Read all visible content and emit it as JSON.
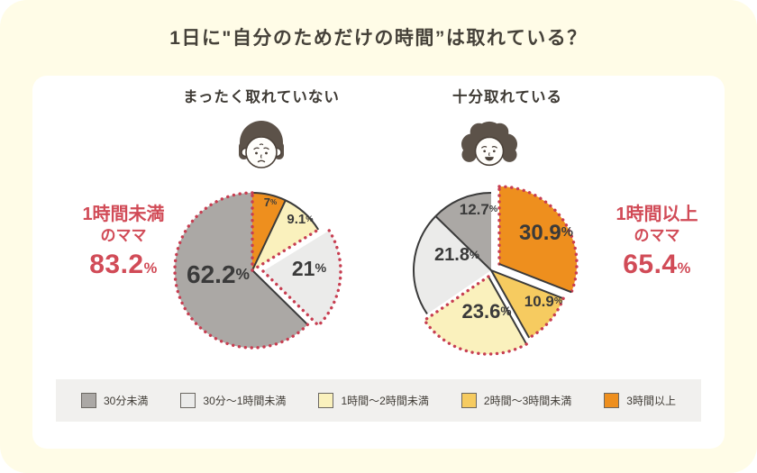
{
  "page": {
    "title": "1日に\"自分のためだけの時間”は取れている？"
  },
  "colors": {
    "gray": "#ABA8A5",
    "lightgray": "#EBEBEA",
    "paleyellow": "#FAF1BD",
    "yellow": "#F6CB60",
    "orange": "#EE8F1E",
    "dark": "#3A3A3A",
    "red_dots": "#C73E51",
    "red_text": "#D14B57",
    "background_cream": "#FFFCE7",
    "card_white": "#FFFFFF",
    "legend_strip": "#F1F0EE"
  },
  "chart_data": [
    {
      "type": "pie",
      "title": "まったく取れていない",
      "face": "worried",
      "callout": {
        "line1": "1時間未満",
        "line2": "のママ",
        "value": "83.2%"
      },
      "highlight_note": "30分未満 + 30分～1時間未満 = 83.2% (red dotted group, 21% slice exploded)",
      "slices": [
        {
          "category": "3時間以上",
          "value": 7,
          "label": "7%",
          "color": "orange",
          "explode": [
            0,
            0
          ],
          "label_offset": [
            20,
            -76
          ],
          "label_size": 13,
          "edges": {
            "start": "none",
            "arc": "dark",
            "end": "dark"
          },
          "highlighted": false
        },
        {
          "category": "1時間～2時間未満",
          "value": 9.1,
          "label": "9.1%",
          "color": "paleyellow",
          "explode": [
            0,
            0
          ],
          "label_offset": [
            53,
            -57
          ],
          "label_size": 15,
          "edges": {
            "start": "none",
            "arc": "dark",
            "end": "dotted"
          },
          "highlighted": false
        },
        {
          "category": "30分～1時間未満",
          "value": 21,
          "label": "21%",
          "color": "lightgray",
          "explode": [
            12,
            1
          ],
          "label_offset": [
            63,
            -2
          ],
          "label_size": 23,
          "edges": {
            "start": "none",
            "arc": "dotted",
            "end": "dotted"
          },
          "highlighted": true
        },
        {
          "category": "30分未満",
          "value": 62.2,
          "label": "62.2%",
          "color": "gray",
          "explode": [
            0,
            0
          ],
          "label_offset": [
            -38,
            4
          ],
          "label_size": 28,
          "edges": {
            "start": "dark",
            "arc": "dotted",
            "end": "dotted"
          },
          "highlighted": true
        }
      ]
    },
    {
      "type": "pie",
      "title": "十分取れている",
      "face": "happy",
      "callout": {
        "line1": "1時間以上",
        "line2": "のママ",
        "value": "65.4%"
      },
      "highlight_note": "1時間～2時間未満 + 2時間～3時間未満 + 3時間以上 = 65.4% (red dotted group, 30.9% slice exploded)",
      "slices": [
        {
          "category": "3時間以上",
          "value": 30.9,
          "label": "30.9%",
          "color": "orange",
          "explode": [
            9,
            -7
          ],
          "label_offset": [
            61,
            -42
          ],
          "label_size": 24,
          "edges": {
            "start": "dotted",
            "arc": "dotted",
            "end": "dark"
          },
          "highlighted": true
        },
        {
          "category": "2時間～3時間未満",
          "value": 10.9,
          "label": "10.9%",
          "color": "yellow",
          "explode": [
            0,
            0
          ],
          "label_offset": [
            58,
            34
          ],
          "label_size": 17,
          "edges": {
            "start": "dark",
            "arc": "dotted",
            "end": "dark"
          },
          "highlighted": true
        },
        {
          "category": "1時間～2時間未満",
          "value": 23.6,
          "label": "23.6%",
          "color": "paleyellow",
          "explode": [
            -3,
            7
          ],
          "label_offset": [
            -5,
            45
          ],
          "label_size": 22,
          "edges": {
            "start": "dark",
            "arc": "dotted",
            "end": "dotted"
          },
          "highlighted": true
        },
        {
          "category": "30分～1時間未満",
          "value": 21.8,
          "label": "21.8%",
          "color": "lightgray",
          "explode": [
            0,
            0
          ],
          "label_offset": [
            -38,
            -17
          ],
          "label_size": 20,
          "edges": {
            "start": "none",
            "arc": "dark",
            "end": "dark"
          },
          "highlighted": false
        },
        {
          "category": "30分未満",
          "value": 12.7,
          "label": "12.7%",
          "color": "gray",
          "explode": [
            0,
            0
          ],
          "label_offset": [
            -14,
            -68
          ],
          "label_size": 17,
          "edges": {
            "start": "none",
            "arc": "dark",
            "end": "none"
          },
          "highlighted": false
        }
      ]
    }
  ],
  "legend": {
    "items": [
      {
        "label": "30分未満",
        "color": "gray"
      },
      {
        "label": "30分～1時間未満",
        "color": "lightgray"
      },
      {
        "label": "1時間～2時間未満",
        "color": "paleyellow"
      },
      {
        "label": "2時間～3時間未満",
        "color": "yellow"
      },
      {
        "label": "3時間以上",
        "color": "orange"
      }
    ]
  }
}
